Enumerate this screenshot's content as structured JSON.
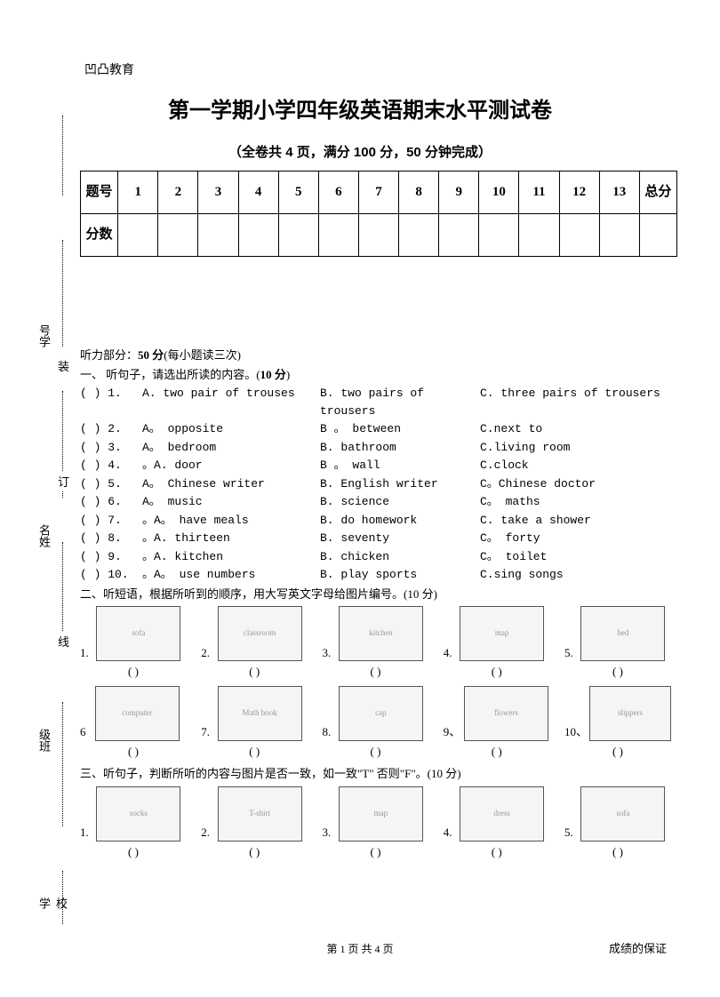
{
  "header_small": "凹凸教育",
  "title": "第一学期小学四年级英语期末水平测试卷",
  "subtitle": "（全卷共 4 页，满分 100 分，50 分钟完成）",
  "margin": {
    "labels": [
      "号学",
      "名姓",
      "级班",
      "校学"
    ],
    "chars": [
      "装",
      "订",
      "线"
    ]
  },
  "score_table": {
    "row1_head": "题号",
    "row2_head": "分数",
    "cols": [
      "1",
      "2",
      "3",
      "4",
      "5",
      "6",
      "7",
      "8",
      "9",
      "10",
      "11",
      "12",
      "13"
    ],
    "total": "总分"
  },
  "listening_head_prefix": "听力部分：",
  "listening_head_bold": "50 分",
  "listening_head_suffix": "(每小题读三次)",
  "section1": {
    "title_prefix": "一、  听句子，请选出所读的内容。(",
    "title_bold": "10 分",
    "title_suffix": ")",
    "rows": [
      {
        "n": "1",
        "a": "A.  two  pair  of  trouses",
        "b": "B.  two  pairs  of  trousers",
        "c": "C.  three  pairs  of  trousers"
      },
      {
        "n": "2",
        "a": "A。 opposite",
        "b": "B 。 between",
        "c": "C.next  to"
      },
      {
        "n": "3",
        "a": "A。 bedroom",
        "b": "B.  bathroom",
        "c": "C.living  room"
      },
      {
        "n": "4",
        "a": "。A.  door",
        "b": "B 。 wall",
        "c": "C.clock"
      },
      {
        "n": "5",
        "a": "A。 Chinese  writer",
        "b": "B.  English  writer",
        "c": "C。Chinese  doctor"
      },
      {
        "n": "6",
        "a": "A。 music",
        "b": "B.  science",
        "c": "C。 maths"
      },
      {
        "n": "7",
        "a": "。A。 have  meals",
        "b": "B.  do  homework",
        "c": "C.  take  a  shower"
      },
      {
        "n": "8",
        "a": "。A.  thirteen",
        "b": "B.  seventy",
        "c": "C。  forty"
      },
      {
        "n": "9",
        "a": "。A.  kitchen",
        "b": "B.  chicken",
        "c": "C。 toilet"
      },
      {
        "n": "10",
        "a": "。A。 use  numbers",
        "b": "B.  play  sports",
        "c": "C.sing  songs"
      }
    ]
  },
  "section2": {
    "title": "二、听短语，根据所听到的顺序，用大写英文字母给图片编号。(10 分)",
    "row1_nums": [
      "1.",
      "2.",
      "3.",
      "4.",
      "5."
    ],
    "row1_alts": [
      "sofa",
      "classroom",
      "kitchen",
      "map",
      "bed"
    ],
    "row2_nums": [
      "6",
      "7.",
      "8.",
      "9、",
      "10、"
    ],
    "row2_alts": [
      "computer",
      "Math book",
      "cap",
      "flowers",
      "slippers"
    ],
    "paren": "(          )"
  },
  "section3": {
    "title": "三、听句子，判断所听的内容与图片是否一致，如一致\"T\"  否则\"F\"。(10 分)",
    "nums": [
      "1.",
      "2.",
      "3.",
      "4.",
      "5."
    ],
    "alts": [
      "socks",
      "T-shirt",
      "map",
      "dress",
      "sofa"
    ],
    "paren": "(          )"
  },
  "footer_page": "第 1 页 共 4 页",
  "footer_right": "成绩的保证"
}
